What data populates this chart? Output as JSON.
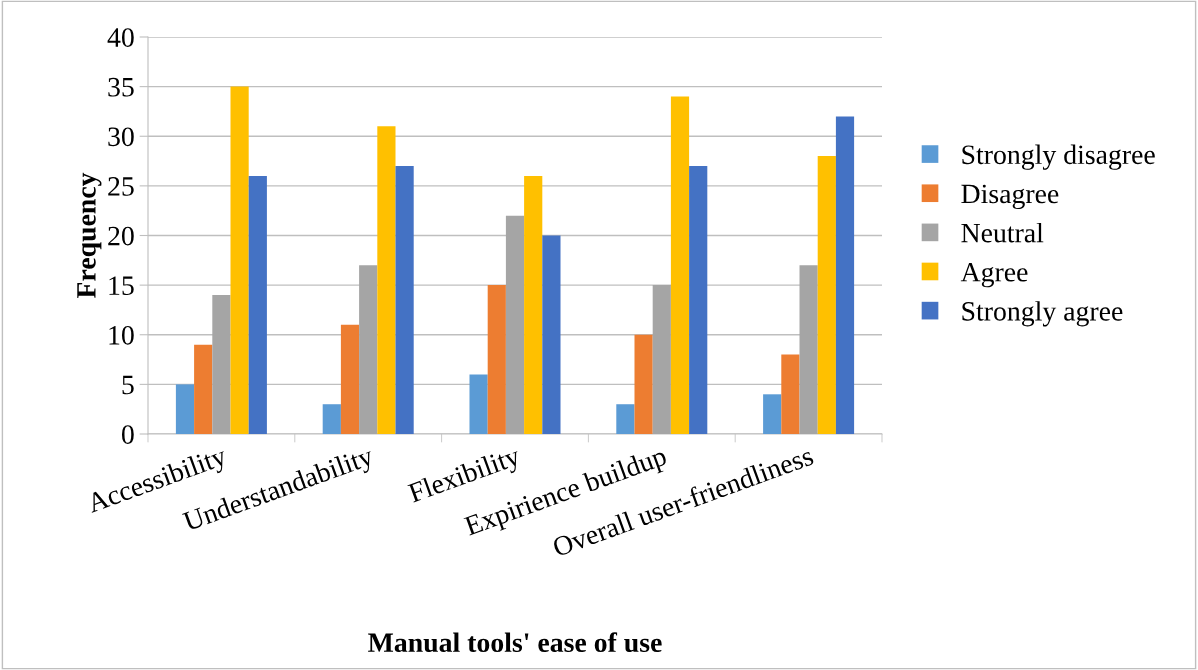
{
  "chart_data": {
    "type": "bar",
    "xlabel": "Manual tools' ease of use",
    "ylabel": "Frequency",
    "categories": [
      "Accessibility",
      "Understandability",
      "Flexibility",
      "Expirience buildup",
      "Overall user-friendliness"
    ],
    "series": [
      {
        "name": "Strongly disagree",
        "color": "#5b9bd5",
        "values": [
          5,
          3,
          6,
          3,
          4
        ]
      },
      {
        "name": "Disagree",
        "color": "#ed7d31",
        "values": [
          9,
          11,
          15,
          10,
          8
        ]
      },
      {
        "name": "Neutral",
        "color": "#a5a5a5",
        "values": [
          14,
          17,
          22,
          15,
          17
        ]
      },
      {
        "name": "Agree",
        "color": "#ffc000",
        "values": [
          35,
          31,
          26,
          34,
          28
        ]
      },
      {
        "name": "Strongly agree",
        "color": "#4472c4",
        "values": [
          26,
          27,
          20,
          27,
          32
        ]
      }
    ],
    "ylim": [
      0,
      40
    ],
    "yticks": [
      0,
      5,
      10,
      15,
      20,
      25,
      30,
      35,
      40
    ],
    "grid": "y",
    "legend": "right"
  }
}
